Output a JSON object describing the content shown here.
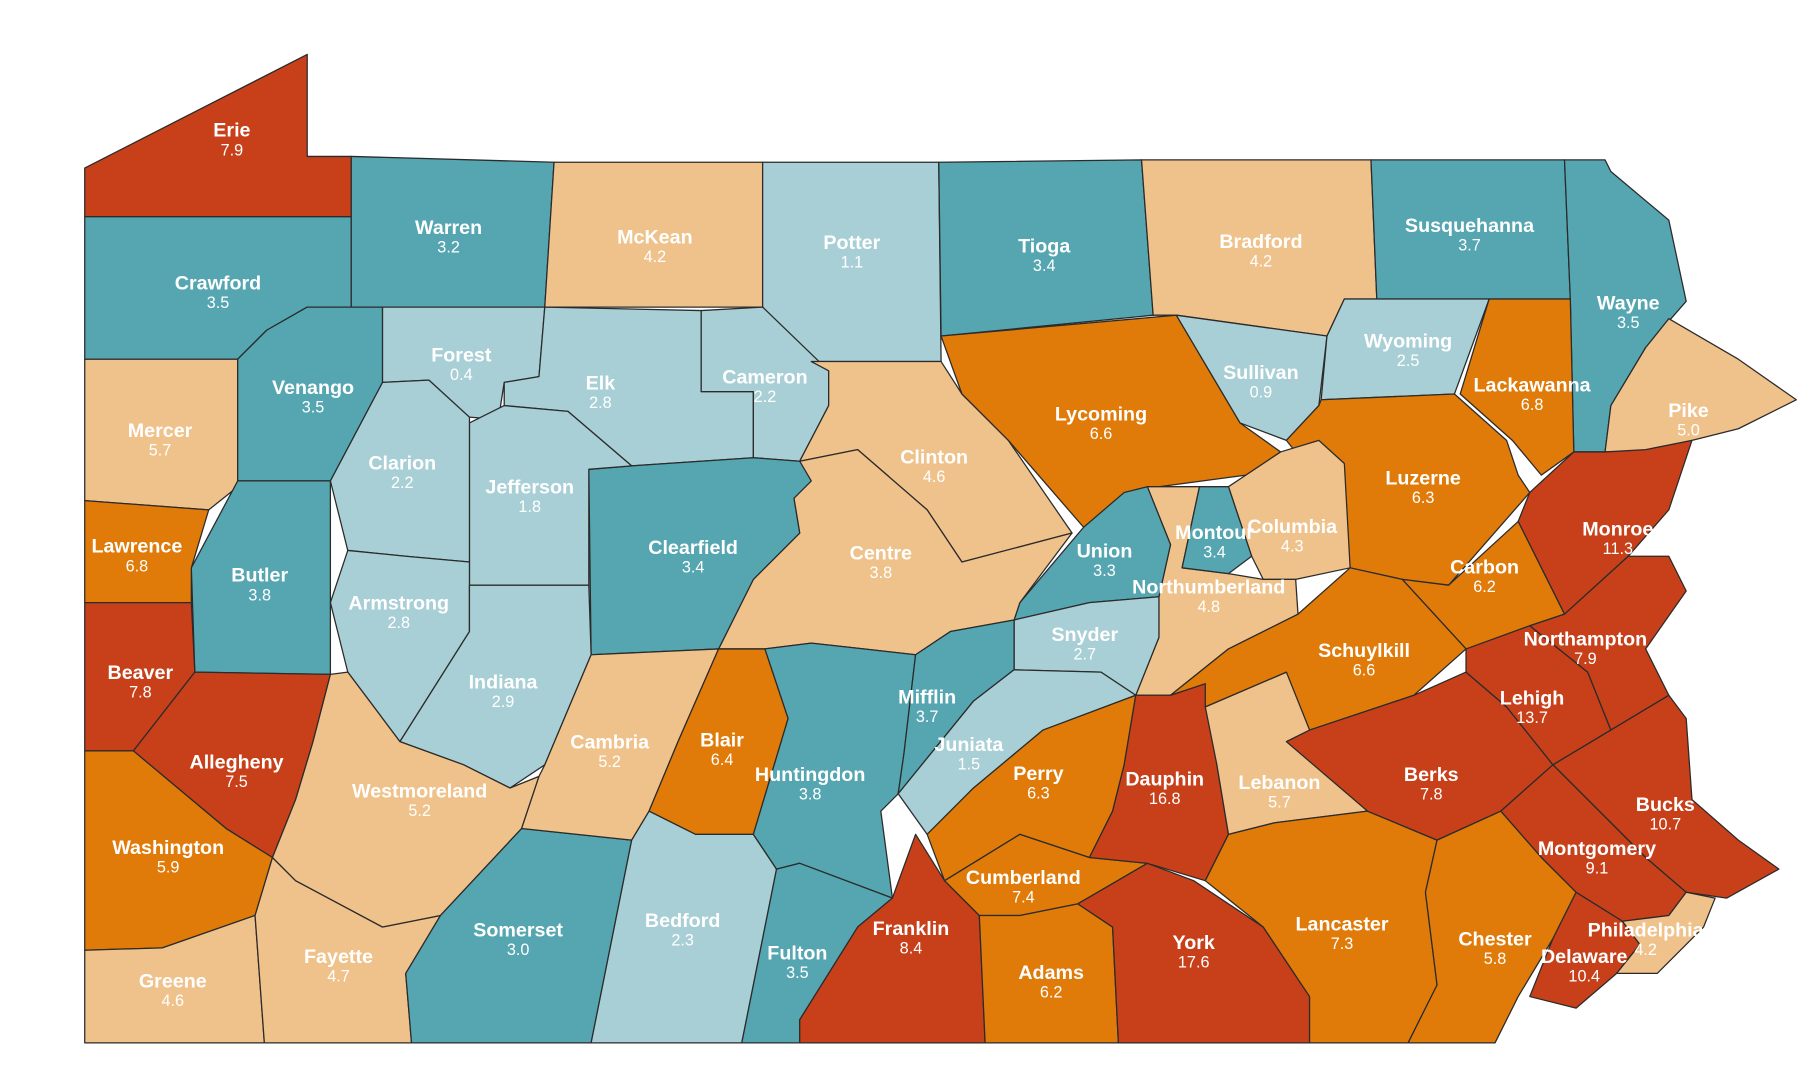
{
  "counties": [
    {
      "name": "Erie",
      "value": 7.9,
      "color": "#c8401a"
    },
    {
      "name": "Crawford",
      "value": 3.5,
      "color": "#55a6b1"
    },
    {
      "name": "Warren",
      "value": 3.2,
      "color": "#55a6b1"
    },
    {
      "name": "McKean",
      "value": 4.2,
      "color": "#f0c28b"
    },
    {
      "name": "Potter",
      "value": 1.1,
      "color": "#a8cfd5"
    },
    {
      "name": "Tioga",
      "value": 3.4,
      "color": "#55a6b1"
    },
    {
      "name": "Bradford",
      "value": 4.2,
      "color": "#f0c28b"
    },
    {
      "name": "Susquehanna",
      "value": 3.7,
      "color": "#55a6b1"
    },
    {
      "name": "Wayne",
      "value": 3.5,
      "color": "#55a6b1"
    },
    {
      "name": "Pike",
      "value": 5,
      "value_label": "5.0",
      "color": "#f0c28b"
    },
    {
      "name": "Mercer",
      "value": 5.7,
      "color": "#f0c28b"
    },
    {
      "name": "Venango",
      "value": 3.5,
      "color": "#55a6b1"
    },
    {
      "name": "Forest",
      "value": 0.4,
      "color": "#a8cfd5"
    },
    {
      "name": "Elk",
      "value": 2.8,
      "color": "#a8cfd5"
    },
    {
      "name": "Cameron",
      "value": 2.2,
      "color": "#a8cfd5"
    },
    {
      "name": "Clinton",
      "value": 4.6,
      "color": "#f0c28b"
    },
    {
      "name": "Lycoming",
      "value": 6.6,
      "color": "#e07b0a"
    },
    {
      "name": "Sullivan",
      "value": 0.9,
      "color": "#a8cfd5"
    },
    {
      "name": "Wyoming",
      "value": 2.5,
      "color": "#a8cfd5"
    },
    {
      "name": "Lackawanna",
      "value": 6.8,
      "color": "#e07b0a"
    },
    {
      "name": "Luzerne",
      "value": 6.3,
      "color": "#e07b0a"
    },
    {
      "name": "Monroe",
      "value": 11.3,
      "color": "#c8401a"
    },
    {
      "name": "Carbon",
      "value": 6.2,
      "color": "#e07b0a"
    },
    {
      "name": "Columbia",
      "value": 4.3,
      "color": "#f0c28b"
    },
    {
      "name": "Northumberland",
      "value": 4.8,
      "color": "#f0c28b"
    },
    {
      "name": "Montour",
      "value": 3.4,
      "color": "#55a6b1"
    },
    {
      "name": "Union",
      "value": 3.3,
      "color": "#55a6b1"
    },
    {
      "name": "Snyder",
      "value": 2.7,
      "color": "#a8cfd5"
    },
    {
      "name": "Centre",
      "value": 3.8,
      "color": "#f0c28b"
    },
    {
      "name": "Clearfield",
      "value": 3.4,
      "color": "#55a6b1"
    },
    {
      "name": "Jefferson",
      "value": 1.8,
      "color": "#a8cfd5"
    },
    {
      "name": "Clarion",
      "value": 2.2,
      "color": "#a8cfd5"
    },
    {
      "name": "Armstrong",
      "value": 2.8,
      "color": "#a8cfd5"
    },
    {
      "name": "Indiana",
      "value": 2.9,
      "color": "#a8cfd5"
    },
    {
      "name": "Butler",
      "value": 3.8,
      "color": "#55a6b1"
    },
    {
      "name": "Lawrence",
      "value": 6.8,
      "color": "#e07b0a"
    },
    {
      "name": "Beaver",
      "value": 7.8,
      "color": "#c8401a"
    },
    {
      "name": "Allegheny",
      "value": 7.5,
      "color": "#c8401a"
    },
    {
      "name": "Washington",
      "value": 5.9,
      "color": "#e07b0a"
    },
    {
      "name": "Greene",
      "value": 4.6,
      "color": "#f0c28b"
    },
    {
      "name": "Fayette",
      "value": 4.7,
      "color": "#f0c28b"
    },
    {
      "name": "Westmoreland",
      "value": 5.2,
      "color": "#f0c28b"
    },
    {
      "name": "Somerset",
      "value": 3,
      "value_label": "3.0",
      "color": "#55a6b1"
    },
    {
      "name": "Cambria",
      "value": 5.2,
      "color": "#f0c28b"
    },
    {
      "name": "Blair",
      "value": 6.4,
      "color": "#e07b0a"
    },
    {
      "name": "Bedford",
      "value": 2.3,
      "color": "#a8cfd5"
    },
    {
      "name": "Huntingdon",
      "value": 3.8,
      "color": "#55a6b1"
    },
    {
      "name": "Mifflin",
      "value": 3.7,
      "color": "#55a6b1"
    },
    {
      "name": "Juniata",
      "value": 1.5,
      "color": "#a8cfd5"
    },
    {
      "name": "Fulton",
      "value": 3.5,
      "color": "#55a6b1"
    },
    {
      "name": "Franklin",
      "value": 8.4,
      "color": "#c8401a"
    },
    {
      "name": "Perry",
      "value": 6.3,
      "color": "#e07b0a"
    },
    {
      "name": "Cumberland",
      "value": 7.4,
      "color": "#e07b0a"
    },
    {
      "name": "Adams",
      "value": 6.2,
      "color": "#e07b0a"
    },
    {
      "name": "York",
      "value": 17.6,
      "color": "#c8401a"
    },
    {
      "name": "Dauphin",
      "value": 16.8,
      "color": "#c8401a"
    },
    {
      "name": "Lebanon",
      "value": 5.7,
      "color": "#f0c28b"
    },
    {
      "name": "Schuylkill",
      "value": 6.6,
      "color": "#e07b0a"
    },
    {
      "name": "Lancaster",
      "value": 7.3,
      "color": "#e07b0a"
    },
    {
      "name": "Berks",
      "value": 7.8,
      "color": "#c8401a"
    },
    {
      "name": "Lehigh",
      "value": 13.7,
      "color": "#c8401a"
    },
    {
      "name": "Northampton",
      "value": 7.9,
      "color": "#c8401a"
    },
    {
      "name": "Bucks",
      "value": 10.7,
      "color": "#c8401a"
    },
    {
      "name": "Montgomery",
      "value": 9.1,
      "color": "#c8401a"
    },
    {
      "name": "Chester",
      "value": 5.8,
      "color": "#e07b0a"
    },
    {
      "name": "Delaware",
      "value": 10.4,
      "color": "#c8401a"
    },
    {
      "name": "Philadelphia",
      "value": 4.2,
      "color": "#f0c28b"
    }
  ]
}
